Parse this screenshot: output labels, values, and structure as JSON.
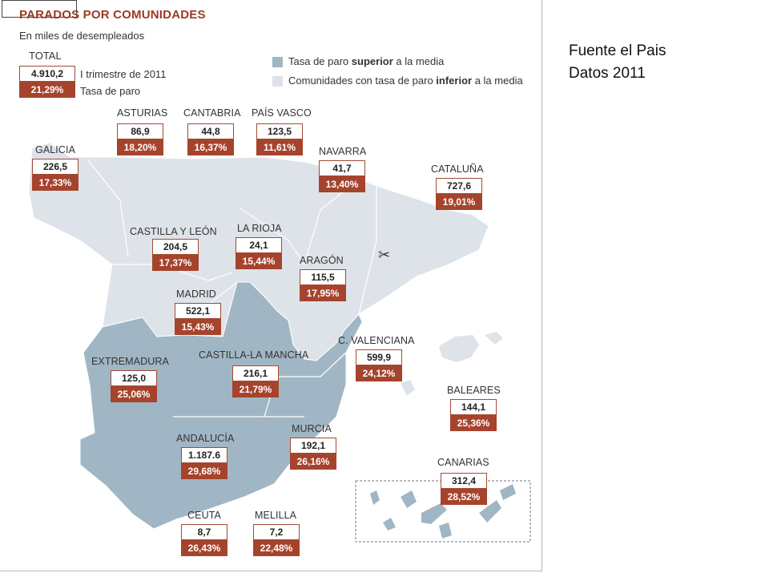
{
  "header": {
    "title": "PARADOS POR COMUNIDADES",
    "subtitle": "En miles de desempleados"
  },
  "total": {
    "label": "TOTAL",
    "value": "4.910,2",
    "rate": "21,29%",
    "value_key": "I trimestre de 2011",
    "rate_key": "Tasa de paro"
  },
  "legend": {
    "above_prefix": "Tasa de paro ",
    "above_bold": "superior",
    "above_suffix": " a la media",
    "below_prefix": "Comunidades con tasa de paro ",
    "below_bold": "inferior",
    "below_suffix": " a la media",
    "above_color": "#a1b6c4",
    "below_color": "#dde3e9"
  },
  "note": {
    "line1": "Fuente el Pais",
    "line2": "Datos 2011"
  },
  "regions": [
    {
      "name": "ASTURIAS",
      "value": "86,9",
      "rate": "18,20%"
    },
    {
      "name": "CANTABRIA",
      "value": "44,8",
      "rate": "16,37%"
    },
    {
      "name": "PAÍS VASCO",
      "value": "123,5",
      "rate": "11,61%"
    },
    {
      "name": "GALICIA",
      "value": "226,5",
      "rate": "17,33%"
    },
    {
      "name": "NAVARRA",
      "value": "41,7",
      "rate": "13,40%"
    },
    {
      "name": "CATALUÑA",
      "value": "727,6",
      "rate": "19,01%"
    },
    {
      "name": "CASTILLA Y LEÓN",
      "value": "204,5",
      "rate": "17,37%"
    },
    {
      "name": "LA RIOJA",
      "value": "24,1",
      "rate": "15,44%"
    },
    {
      "name": "ARAGÓN",
      "value": "115,5",
      "rate": "17,95%"
    },
    {
      "name": "MADRID",
      "value": "522,1",
      "rate": "15,43%"
    },
    {
      "name": "C. VALENCIANA",
      "value": "599,9",
      "rate": "24,12%"
    },
    {
      "name": "EXTREMADURA",
      "value": "125,0",
      "rate": "25,06%"
    },
    {
      "name": "CASTILLA-LA MANCHA",
      "value": "216,1",
      "rate": "21,79%"
    },
    {
      "name": "BALEARES",
      "value": "144,1",
      "rate": "25,36%"
    },
    {
      "name": "ANDALUCÍA",
      "value": "1.187.6",
      "rate": "29,68%"
    },
    {
      "name": "MURCIA",
      "value": "192,1",
      "rate": "26,16%"
    },
    {
      "name": "CANARIAS",
      "value": "312,4",
      "rate": "28,52%"
    },
    {
      "name": "CEUTA",
      "value": "8,7",
      "rate": "26,43%"
    },
    {
      "name": "MELILLA",
      "value": "7,2",
      "rate": "22,48%"
    }
  ],
  "colors": {
    "accent": "#a6432c",
    "map_above": "#a1b6c4",
    "map_below": "#dde3e9"
  },
  "icons": {
    "tool": "scissors-icon"
  }
}
